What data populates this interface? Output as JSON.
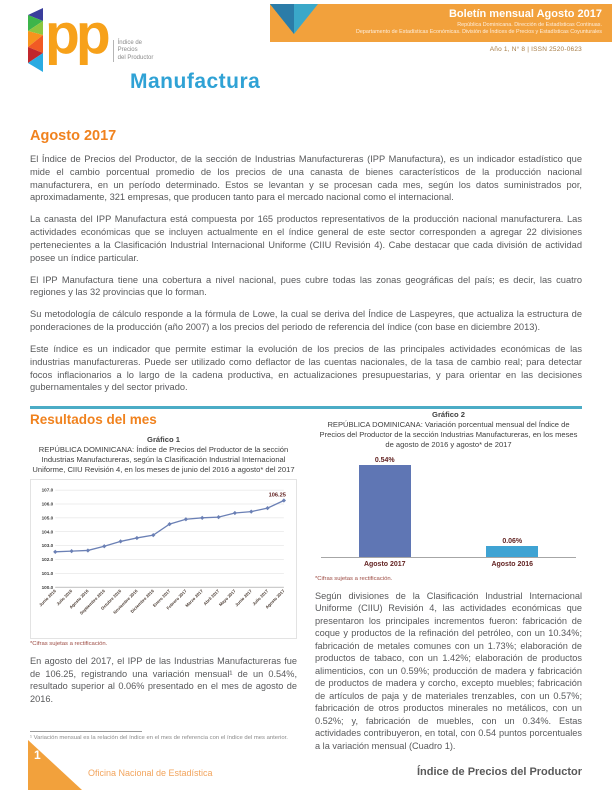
{
  "colors": {
    "banner_orange": "#F2A13C",
    "logo_orange": "#F7A11A",
    "heading_orange": "#F0821E",
    "manufactura_blue": "#2FA2D5",
    "divider_blue": "#4BACC6",
    "line_series": "#6B80B5",
    "bar1_blue": "#5F76B4",
    "bar2_blue": "#3FA3D3",
    "chart_dark_red": "#632423",
    "footer_orange": "#F2A45C"
  },
  "header": {
    "logo": {
      "pp": "pp",
      "tagline_lines": [
        "Índice de",
        "Precios",
        "del Productor"
      ]
    },
    "subtitle": "Manufactura",
    "banner": {
      "title": "Boletín mensual Agosto 2017",
      "line1": "República Dominicana. Dirección de Estadísticas Continuas.",
      "line2": "Departamento de Estadísticas Económicas. División de Índices de Precios y Estadísticas Coyunturales",
      "issue": "Año 1, N° 8  |  ISSN 2520-0623"
    }
  },
  "intro": {
    "heading": "Agosto 2017",
    "paragraphs": [
      "El Índice de Precios del Productor, de la sección de Industrias Manufactureras (IPP Manufactura), es un indicador estadístico que mide el cambio porcentual promedio de los precios de una canasta de bienes característicos de la producción nacional manufacturera, en un período determinado. Estos se levantan y se procesan cada mes, según los datos suministrados por, aproximadamente, 321 empresas, que producen tanto para el mercado nacional como el internacional.",
      "La canasta del IPP Manufactura está compuesta por 165 productos representativos de la producción nacional manufacturera. Las actividades económicas que se incluyen actualmente en el índice general de este sector corresponden a agregar 22 divisiones pertenecientes a la Clasificación Industrial Internacional Uniforme (CIIU Revisión 4). Cabe destacar que cada división de actividad posee un índice particular.",
      "El IPP Manufactura tiene una cobertura a nivel nacional, pues cubre todas las zonas geográficas del país; es decir, las cuatro regiones y las 32 provincias que lo forman.",
      "Su metodología de cálculo responde a la fórmula de Lowe, la cual se deriva del Índice de Laspeyres, que actualiza la estructura de ponderaciones de la producción (año 2007) a los precios del periodo de referencia del índice (con base en diciembre 2013).",
      "Este índice es un indicador que permite estimar la evolución de los precios de las principales actividades económicas de las industrias manufactureras. Puede ser utilizado como deflactor de las cuentas nacionales, de la tasa de cambio real; para detectar focos inflacionarios a lo largo de la cadena productiva, en actualizaciones presupuestarias, y para orientar en las decisiones gubernamentales y del sector privado."
    ]
  },
  "results": {
    "heading": "Resultados del mes",
    "chart1": {
      "label": "Gráfico 1",
      "title": "REPÚBLICA DOMINICANA: Índice de Precios del Productor de la sección Industrias Manufactureras, según la Clasificación Industrial Internacional Uniforme, CIIU Revisión 4, en los meses de junio del 2016 a agosto* del 2017",
      "footnote": "*Cifras sujetas a rectificación."
    },
    "left_paragraph": "En agosto del 2017, el IPP de las Industrias Manufactureras fue de 106.25, registrando una variación mensual¹ de un 0.54%, resultado superior al 0.06% presentado en el mes de agosto de 2016.",
    "chart2": {
      "label": "Gráfico 2",
      "title": "REPÚBLICA DOMINICANA: Variación porcentual mensual del Índice de Precios del Productor de la sección Industrias Manufactureras, en los meses de agosto de 2016 y agosto* de 2017",
      "footnote": "*Cifras sujetas a rectificación."
    },
    "right_paragraph": "Según divisiones de la Clasificación Industrial Internacional Uniforme (CIIU) Revisión 4, las actividades económicas que presentaron los principales incrementos fueron: fabricación de coque y productos de la refinación del petróleo, con un 10.34%; fabricación de metales comunes con un 1.73%; elaboración de productos de tabaco, con un 1.42%; elaboración de productos alimenticios, con un 0.59%; producción de madera y fabricación de productos de madera y corcho, excepto muebles; fabricación de artículos de paja y de materiales trenzables, con un 0.57%; fabricación de otros productos minerales no metálicos, con un 0.52%; y, fabricación de muebles, con un 0.34%. Estas actividades contribuyeron, en total, con 0.54 puntos porcentuales a la variación mensual (Cuadro 1)."
  },
  "chart_data": [
    {
      "type": "line",
      "title": "REPÚBLICA DOMINICANA: Índice de Precios del Productor de la sección Industrias Manufactureras, junio 2016 a agosto 2017",
      "x": [
        "Junio 2016",
        "Julio 2016",
        "Agosto 2016",
        "Septiembre 2016",
        "Octubre 2016",
        "Noviembre 2016",
        "Diciembre 2016",
        "Enero 2017",
        "Febrero 2017",
        "Marzo 2017",
        "Abril 2017",
        "Mayo 2017",
        "Junio 2017",
        "Julio 2017",
        "Agosto 2017"
      ],
      "values": [
        102.55,
        102.6,
        102.65,
        102.95,
        103.3,
        103.55,
        103.75,
        104.55,
        104.9,
        105.0,
        105.05,
        105.35,
        105.45,
        105.7,
        106.25
      ],
      "ylim": [
        100.0,
        107.0
      ],
      "ytick_step": 1.0,
      "grid": true,
      "legend": "none",
      "last_point_label": "106.25"
    },
    {
      "type": "bar",
      "title": "Variación porcentual mensual, agosto 2016 y agosto 2017",
      "categories": [
        "Agosto 2017",
        "Agosto 2016"
      ],
      "values": [
        0.54,
        0.06
      ],
      "value_labels": [
        "0.54%",
        "0.06%"
      ],
      "ylim": [
        0,
        0.6
      ],
      "grid": false
    }
  ],
  "footnotes": {
    "monthly_variation": "¹ Variación mensual es la relación del índice en el mes de referencia con el índice del mes anterior."
  },
  "footer": {
    "page_number": "1",
    "org": "Oficina Nacional de Estadística",
    "right_text": "Índice de Precios del Productor"
  }
}
